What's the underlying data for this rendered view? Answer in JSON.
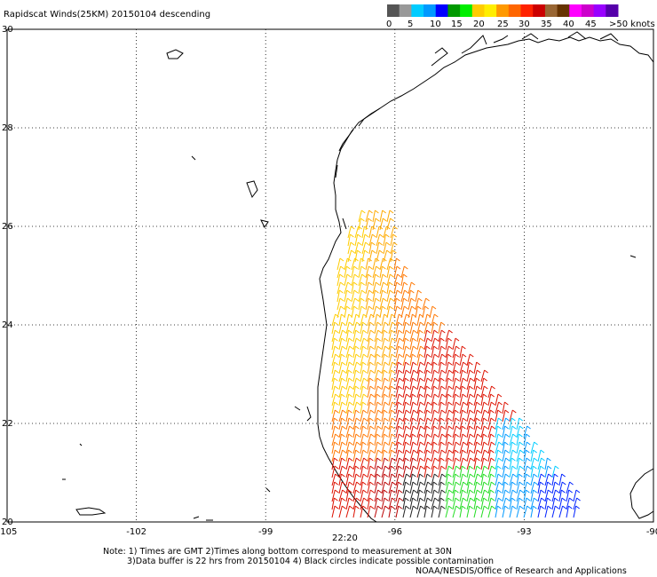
{
  "title": "Rapidscat Winds(25KM) 20150104 descending",
  "colorbar": {
    "labels": [
      "0",
      "5",
      "10",
      "15",
      "20",
      "25",
      "30",
      "35",
      "40",
      "45",
      ">50 knots"
    ],
    "colors": [
      "#555555",
      "#999999",
      "#00ccff",
      "#0099ff",
      "#0000ff",
      "#009900",
      "#00ee00",
      "#ffcc00",
      "#ffee00",
      "#ff9900",
      "#ff6600",
      "#ff2200",
      "#cc0000",
      "#996633",
      "#663300",
      "#ff00ff",
      "#cc00cc",
      "#9900ff",
      "#5500aa"
    ]
  },
  "axes": {
    "lon_ticks": [
      "-105",
      "-102",
      "-99",
      "-96",
      "-93",
      "-90"
    ],
    "lat_ticks": [
      "30",
      "28",
      "26",
      "24",
      "22",
      "20"
    ],
    "lon_range": [
      -105,
      -90
    ],
    "lat_range": [
      20,
      30
    ],
    "grid": "dotted"
  },
  "time_label": "22:20",
  "notes": [
    "Note: 1) Times are GMT 2)Times along bottom correspond to measurement at 30N",
    "3)Data buffer is 22 hrs from 20150104 4) Black circles indicate possible contamination"
  ],
  "credit": "NOAA/NESDIS/Office of Research and Applications",
  "colors": {
    "time_label": "#7a1f8a",
    "coast": "#000000",
    "grid": "#000000"
  }
}
